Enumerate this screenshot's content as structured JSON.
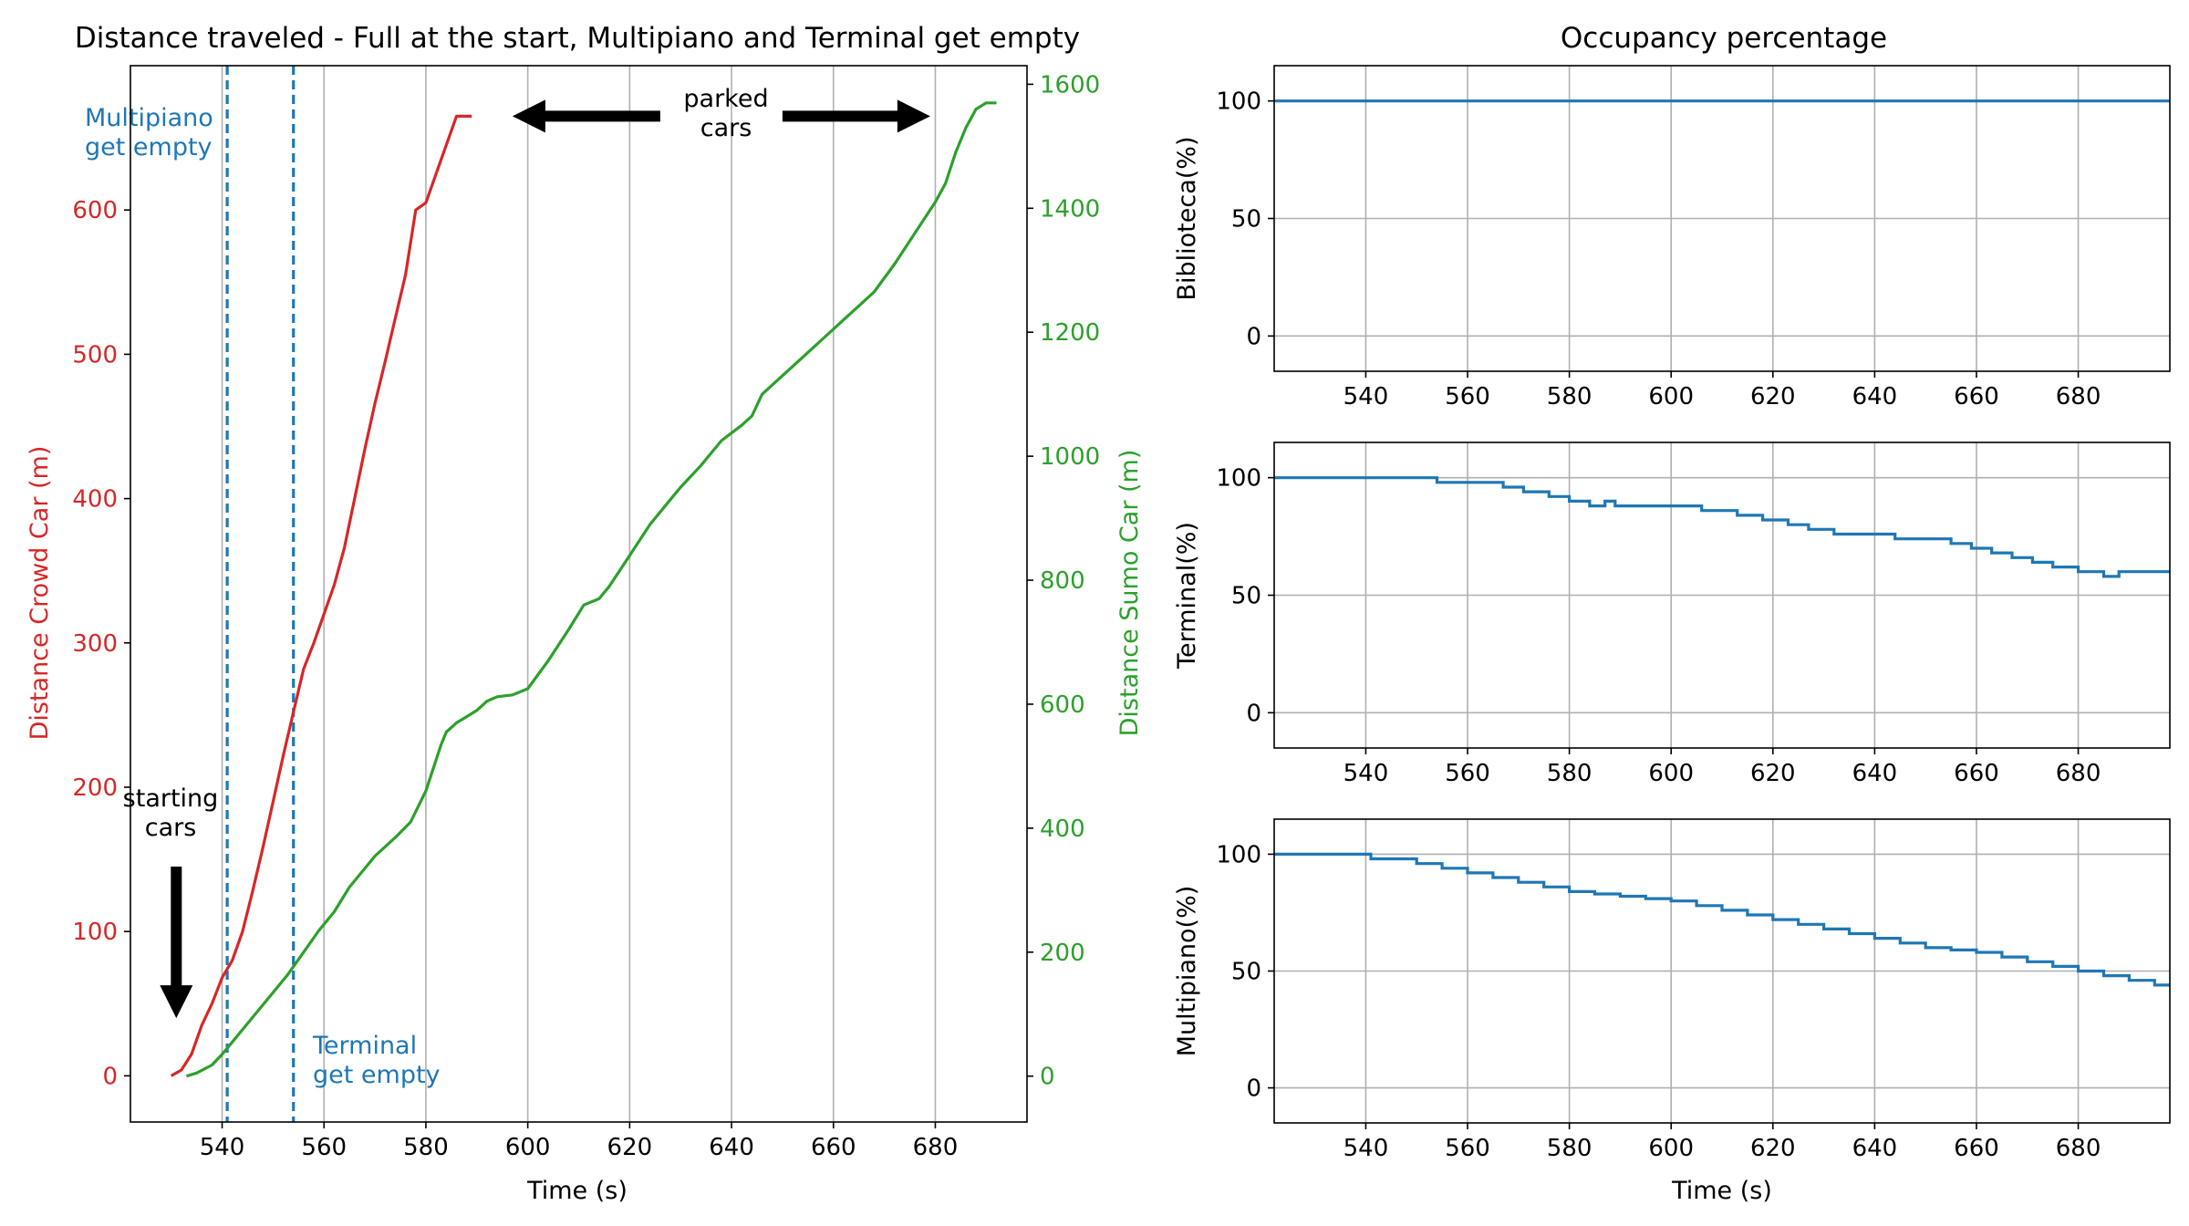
{
  "chart_data": [
    {
      "type": "line",
      "title": "Distance traveled - Full at the start, Multipiano and Terminal get empty",
      "xlabel": "Time (s)",
      "ylabel": "Distance Crowd Car (m)",
      "y2label": "Distance Sumo Car (m)",
      "xlim": [
        522,
        698
      ],
      "ylim": [
        -32,
        700
      ],
      "y2lim": [
        -74,
        1630
      ],
      "xticks": [
        540,
        560,
        580,
        600,
        620,
        640,
        660,
        680
      ],
      "yticks": [
        0,
        100,
        200,
        300,
        400,
        500,
        600
      ],
      "y2ticks": [
        0,
        200,
        400,
        600,
        800,
        1000,
        1200,
        1400,
        1600
      ],
      "grid": "x-only",
      "colors": {
        "crowd": "#d62728",
        "sumo": "#2ca02c",
        "vline": "#1f77b4"
      },
      "series": [
        {
          "axis": "left",
          "color": "#d62728",
          "x": [
            530,
            532,
            534,
            536,
            538,
            540,
            542,
            544,
            546,
            548,
            550,
            552,
            554,
            556,
            558,
            560,
            562,
            564,
            566,
            568,
            570,
            572,
            574,
            576,
            578,
            580,
            581,
            582,
            583,
            584,
            585,
            586,
            587,
            588,
            589
          ],
          "y": [
            0,
            4,
            15,
            35,
            50,
            68,
            80,
            100,
            128,
            158,
            190,
            222,
            252,
            282,
            300,
            320,
            340,
            366,
            400,
            434,
            466,
            495,
            525,
            555,
            600,
            605,
            615,
            625,
            635,
            645,
            655,
            665,
            665,
            665,
            665
          ]
        },
        {
          "axis": "right",
          "color": "#2ca02c",
          "x": [
            533,
            535,
            538,
            540,
            542,
            545,
            548,
            550,
            553,
            556,
            559,
            562,
            565,
            570,
            574,
            577,
            580,
            583,
            584,
            586,
            590,
            592,
            594,
            597,
            600,
            604,
            608,
            611,
            614,
            616,
            620,
            624,
            628,
            630,
            634,
            638,
            642,
            644,
            646,
            650,
            654,
            658,
            662,
            666,
            668,
            672,
            676,
            680,
            682,
            684,
            686,
            688,
            690,
            692
          ],
          "y": [
            0,
            5,
            18,
            35,
            55,
            85,
            115,
            135,
            165,
            200,
            235,
            265,
            305,
            355,
            385,
            410,
            460,
            535,
            555,
            570,
            590,
            605,
            612,
            615,
            625,
            670,
            720,
            760,
            770,
            790,
            840,
            890,
            930,
            950,
            985,
            1025,
            1050,
            1065,
            1100,
            1130,
            1160,
            1190,
            1220,
            1250,
            1265,
            1310,
            1360,
            1410,
            1440,
            1490,
            1530,
            1560,
            1570,
            1570
          ]
        }
      ],
      "vertical_lines": [
        541,
        554
      ],
      "annotations": [
        {
          "label": "multipiano_line",
          "lines": [
            "Multipiano",
            "get empty"
          ],
          "color": "#1f77b4"
        },
        {
          "label": "terminal_line",
          "lines": [
            "Terminal",
            "get empty"
          ],
          "color": "#1f77b4"
        },
        {
          "label": "starting",
          "lines": [
            "starting",
            "cars"
          ],
          "color": "#000000"
        },
        {
          "label": "parked",
          "lines": [
            "parked",
            "cars"
          ],
          "color": "#000000"
        }
      ],
      "arrows": [
        {
          "name": "starting-cars-arrow",
          "from": [
            531,
            145
          ],
          "to": [
            531,
            40
          ],
          "axis": "left"
        },
        {
          "name": "parked-left-arrow",
          "from": [
            626,
            665
          ],
          "to": [
            597,
            665
          ],
          "axis": "left"
        },
        {
          "name": "parked-right-arrow",
          "from": [
            650,
            665
          ],
          "to": [
            679,
            665
          ],
          "axis": "left"
        }
      ]
    },
    {
      "type": "line",
      "title": "Occupancy percentage",
      "xlabel": "",
      "ylabel": "Biblioteca(%)",
      "xlim": [
        522,
        698
      ],
      "ylim": [
        -15,
        115
      ],
      "xticks": [
        540,
        560,
        580,
        600,
        620,
        640,
        660,
        680
      ],
      "yticks": [
        0,
        50,
        100
      ],
      "grid": "both",
      "series": [
        {
          "color": "#1f77b4",
          "x": [
            522,
            698
          ],
          "y": [
            100,
            100
          ]
        }
      ]
    },
    {
      "type": "line",
      "title": "",
      "xlabel": "",
      "ylabel": "Terminal(%)",
      "xlim": [
        522,
        698
      ],
      "ylim": [
        -15,
        115
      ],
      "xticks": [
        540,
        560,
        580,
        600,
        620,
        640,
        660,
        680
      ],
      "yticks": [
        0,
        50,
        100
      ],
      "grid": "both",
      "series": [
        {
          "color": "#1f77b4",
          "step": true,
          "x": [
            522,
            553,
            554,
            567,
            571,
            576,
            580,
            584,
            587,
            589,
            591,
            606,
            613,
            618,
            623,
            627,
            632,
            644,
            655,
            659,
            663,
            667,
            671,
            675,
            680,
            685,
            688,
            690,
            698
          ],
          "y": [
            100,
            100,
            98,
            96,
            94,
            92,
            90,
            88,
            90,
            88,
            88,
            86,
            84,
            82,
            80,
            78,
            76,
            74,
            72,
            70,
            68,
            66,
            64,
            62,
            60,
            58,
            60,
            60,
            60
          ]
        }
      ]
    },
    {
      "type": "line",
      "title": "",
      "xlabel": "Time (s)",
      "ylabel": "Multipiano(%)",
      "xlim": [
        522,
        698
      ],
      "ylim": [
        -15,
        115
      ],
      "xticks": [
        540,
        560,
        580,
        600,
        620,
        640,
        660,
        680
      ],
      "yticks": [
        0,
        50,
        100
      ],
      "grid": "both",
      "series": [
        {
          "color": "#1f77b4",
          "step": true,
          "x": [
            522,
            541,
            550,
            555,
            560,
            565,
            570,
            575,
            580,
            585,
            590,
            595,
            600,
            605,
            610,
            615,
            620,
            625,
            630,
            635,
            640,
            645,
            650,
            655,
            660,
            665,
            670,
            675,
            680,
            685,
            690,
            695,
            698
          ],
          "y": [
            100,
            98,
            96,
            94,
            92,
            90,
            88,
            86,
            84,
            83,
            82,
            81,
            80,
            78,
            76,
            74,
            72,
            70,
            68,
            66,
            64,
            62,
            60,
            59,
            58,
            56,
            54,
            52,
            50,
            48,
            46,
            44,
            44
          ]
        }
      ]
    }
  ]
}
